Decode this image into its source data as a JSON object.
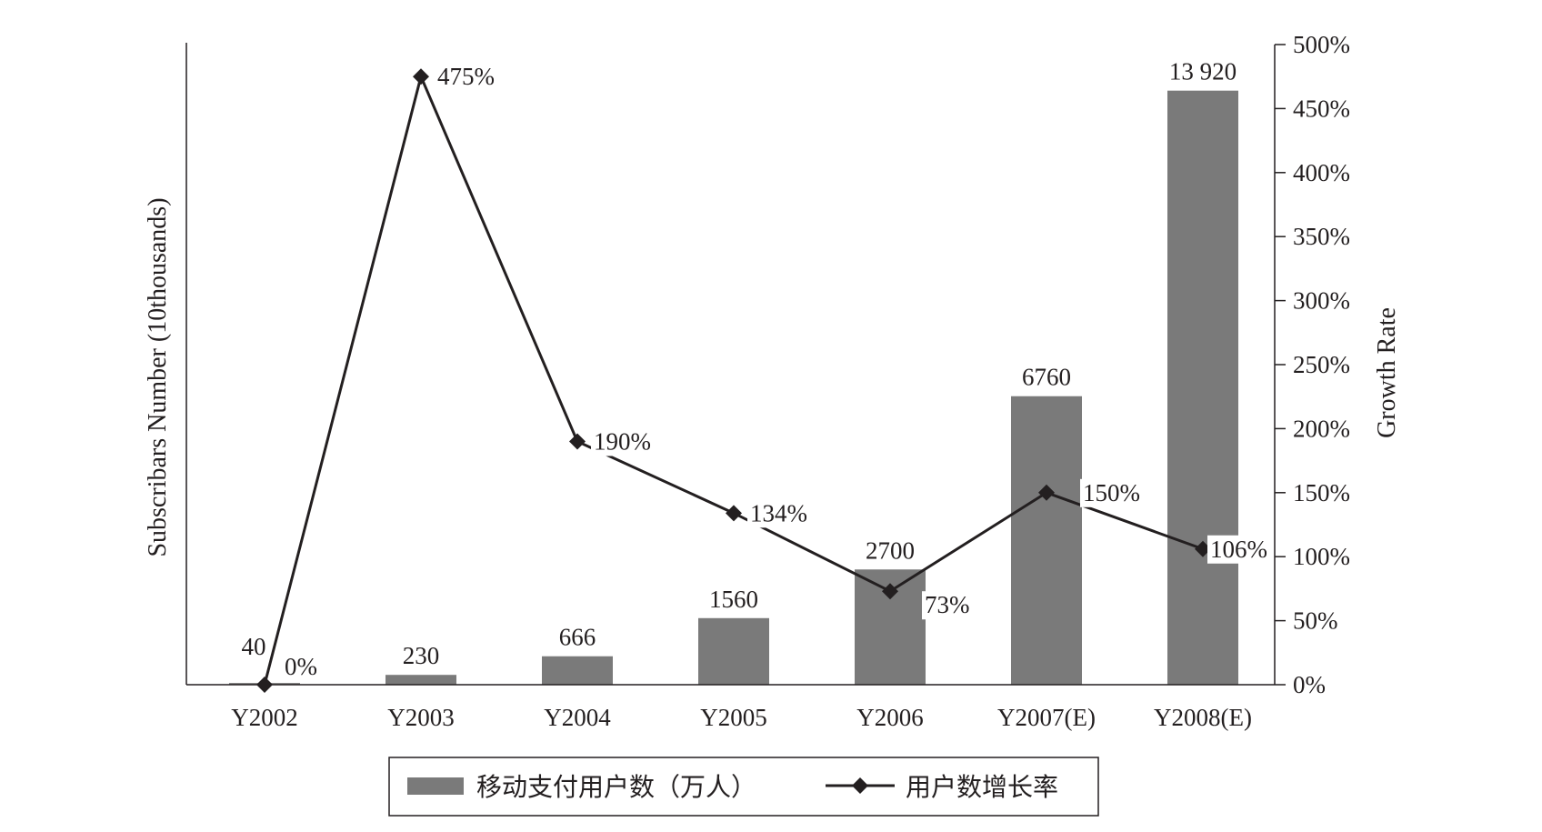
{
  "chart_data": {
    "type": "bar",
    "categories": [
      "Y2002",
      "Y2003",
      "Y2004",
      "Y2005",
      "Y2006",
      "Y2007(E)",
      "Y2008(E)"
    ],
    "series": [
      {
        "name": "移动支付用户数（万人）",
        "type": "bar",
        "axis": "left",
        "values": [
          40,
          230,
          666,
          1560,
          2700,
          6760,
          13920
        ],
        "labels": [
          "40",
          "230",
          "666",
          "1560",
          "2700",
          "6760",
          "13 920"
        ],
        "color": "#7a7a7a"
      },
      {
        "name": "用户数增长率",
        "type": "line",
        "axis": "right",
        "values": [
          0,
          475,
          190,
          134,
          73,
          150,
          106
        ],
        "labels": [
          "0%",
          "475%",
          "190%",
          "134%",
          "73%",
          "150%",
          "106%"
        ],
        "color": "#231f20",
        "marker": "diamond"
      }
    ],
    "ylabel": "Subscribars Number (10thousands)",
    "y2label": "Growth Rate",
    "ylim": [
      0,
      15000
    ],
    "y2lim": [
      0,
      500
    ],
    "y2_ticks": [
      "0%",
      "50%",
      "100%",
      "150%",
      "200%",
      "250%",
      "300%",
      "350%",
      "400%",
      "450%",
      "500%"
    ],
    "legend_position": "bottom",
    "grid": false
  }
}
